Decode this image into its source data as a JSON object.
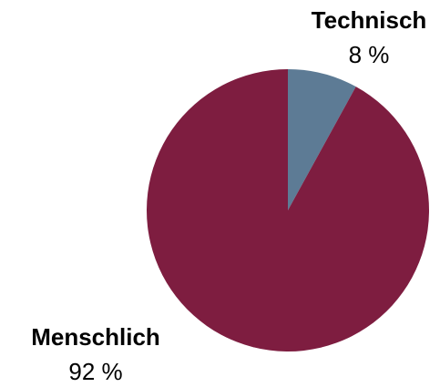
{
  "chart_data": {
    "type": "pie",
    "categories": [
      "Technisch",
      "Menschlich"
    ],
    "values": [
      8,
      92
    ],
    "value_labels": [
      "8 %",
      "92 %"
    ],
    "colors": [
      "#5d7b95",
      "#7e1d40"
    ]
  }
}
